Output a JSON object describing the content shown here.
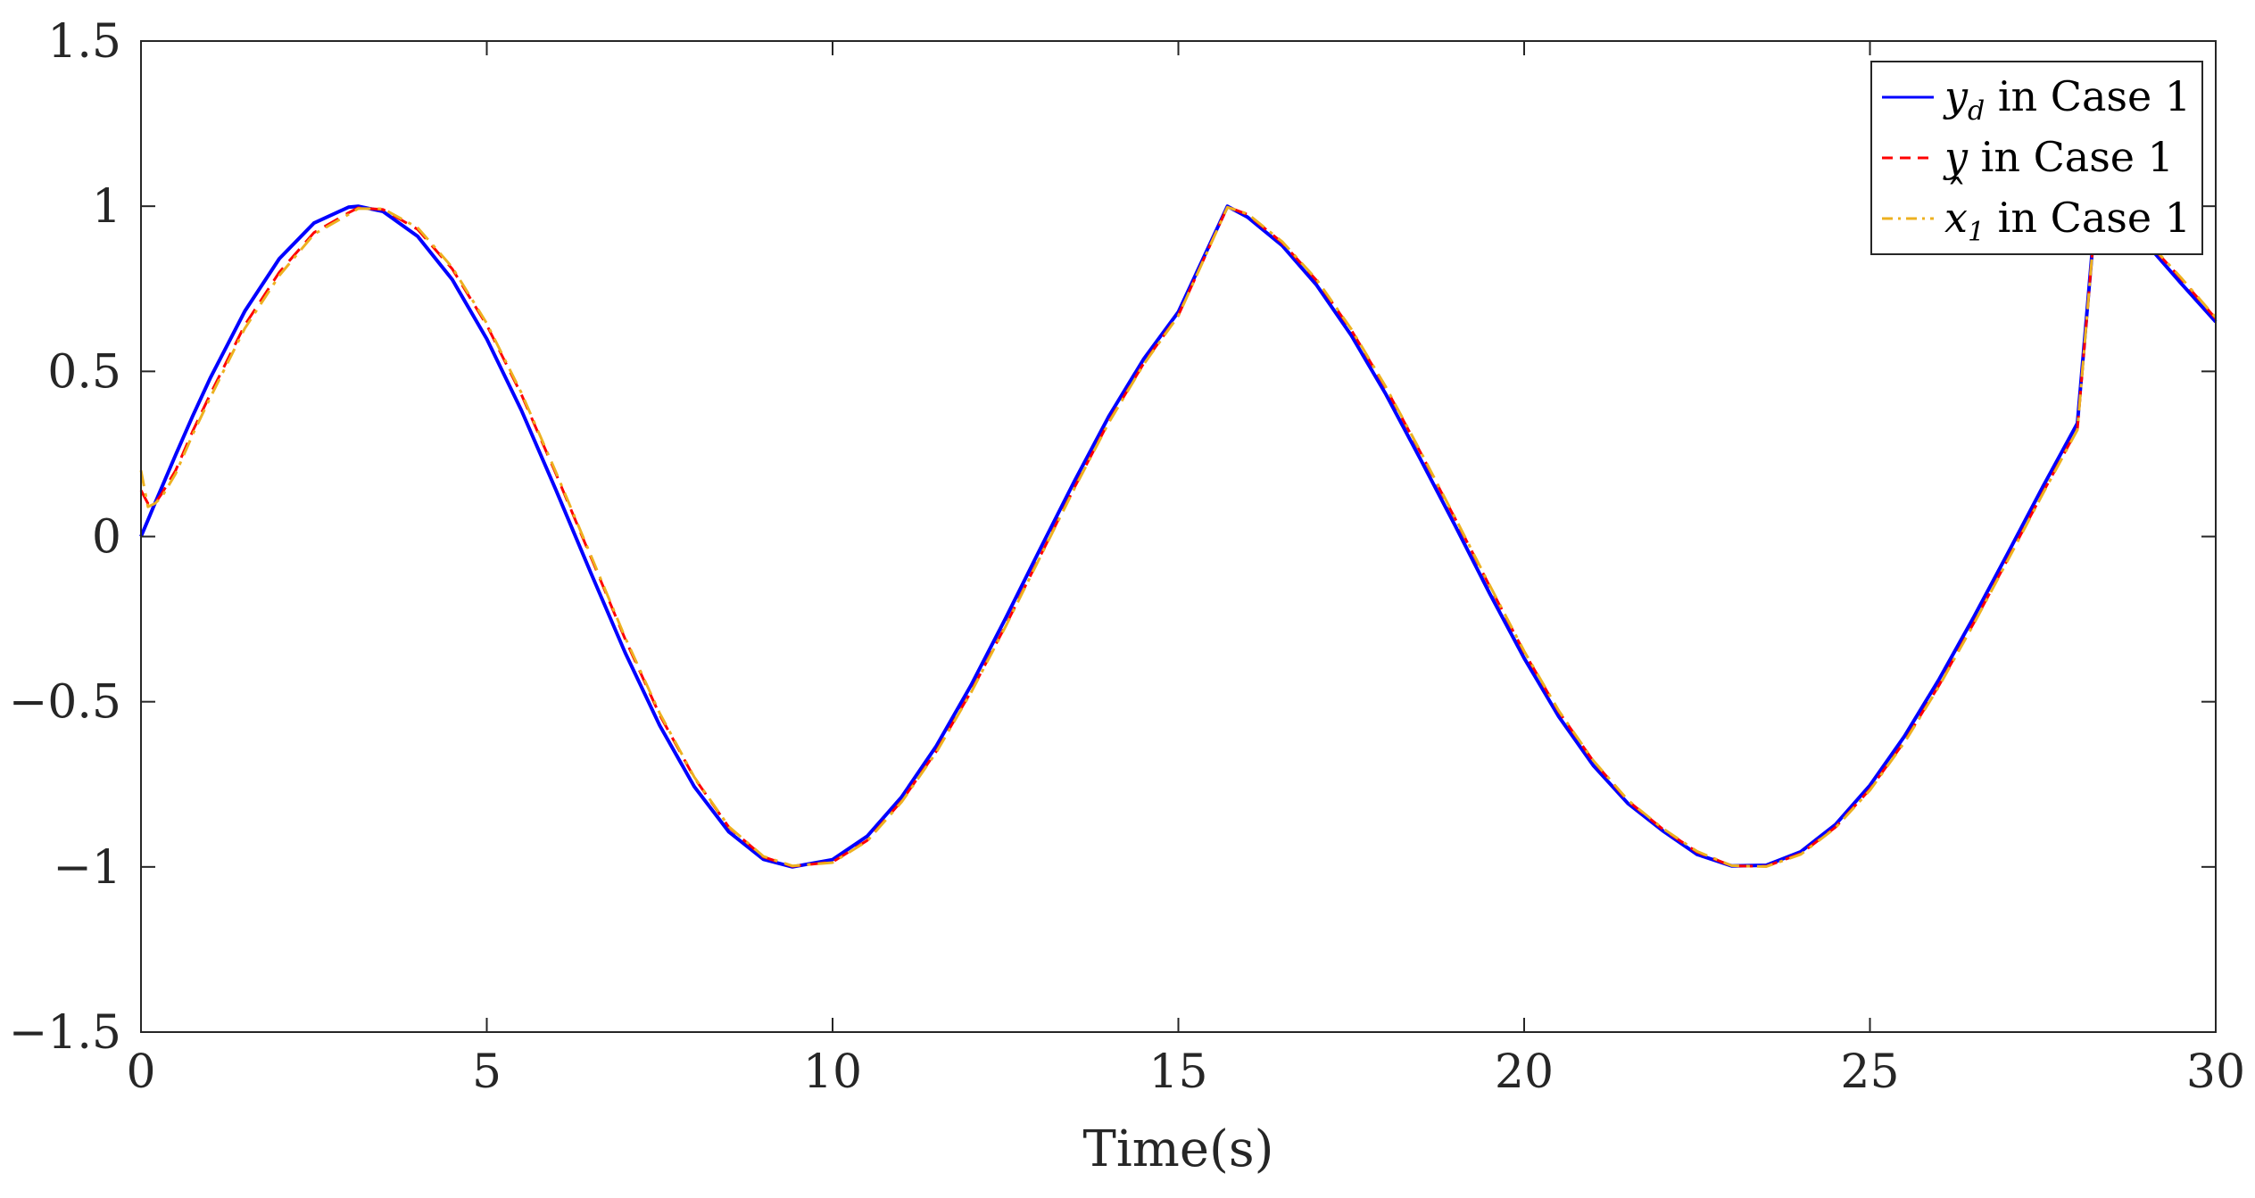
{
  "chart_data": {
    "type": "line",
    "title": "",
    "xlabel": "Time(s)",
    "ylabel": "",
    "xlim": [
      0,
      30
    ],
    "ylim": [
      -1.5,
      1.5
    ],
    "x_ticks": [
      0,
      5,
      10,
      15,
      20,
      25,
      30
    ],
    "y_ticks": [
      -1.5,
      -1,
      -0.5,
      0,
      0.5,
      1,
      1.5
    ],
    "x_tick_labels": [
      "0",
      "5",
      "10",
      "15",
      "20",
      "25",
      "30"
    ],
    "y_tick_labels": [
      "−1.5",
      "−1",
      "−0.5",
      "0",
      "0.5",
      "1",
      "1.5"
    ],
    "grid": false,
    "legend_position": "top-right",
    "x": [
      0,
      0.1,
      0.2,
      0.3,
      0.5,
      0.75,
      1,
      1.5,
      2,
      2.5,
      3,
      3.14,
      3.5,
      4,
      4.5,
      5,
      5.5,
      6,
      6.5,
      7,
      7.5,
      8,
      8.5,
      9,
      9.42,
      10,
      10.5,
      11,
      11.5,
      12,
      12.5,
      13,
      13.5,
      14,
      14.5,
      15,
      15.71,
      16,
      16.5,
      17,
      17.5,
      18,
      18.5,
      19,
      19.5,
      20,
      20.5,
      21,
      21.5,
      22,
      22.5,
      23,
      23.5,
      24,
      24.5,
      25,
      25.5,
      26,
      26.5,
      27,
      27.5,
      28,
      28.27,
      28.5,
      29,
      29.5,
      30
    ],
    "series": [
      {
        "name": "in Case 1",
        "symbol": "y",
        "subscript": "d",
        "hat": false,
        "color": "#0000FF",
        "style": "solid",
        "y": [
          0,
          0.05,
          0.1,
          0.149,
          0.247,
          0.366,
          0.479,
          0.682,
          0.841,
          0.949,
          0.997,
          1,
          0.984,
          0.909,
          0.778,
          0.598,
          0.382,
          0.141,
          -0.108,
          -0.351,
          -0.572,
          -0.757,
          -0.894,
          -0.977,
          -1,
          -0.978,
          -0.907,
          -0.788,
          -0.634,
          -0.451,
          -0.248,
          -0.038,
          0.169,
          0.366,
          0.538,
          0.68,
          0.9999,
          0.967,
          0.881,
          0.761,
          0.609,
          0.431,
          0.234,
          0.034,
          -0.172,
          -0.368,
          -0.545,
          -0.693,
          -0.808,
          -0.89,
          -0.962,
          -0.997,
          -0.995,
          -0.954,
          -0.872,
          -0.753,
          -0.604,
          -0.432,
          -0.244,
          -0.048,
          0.151,
          0.343,
          1,
          0.96,
          0.886,
          0.766,
          0.65
        ]
      },
      {
        "name": "in Case 1",
        "symbol": "y",
        "subscript": "",
        "hat": false,
        "color": "#FF0000",
        "style": "dashed",
        "y": [
          0.14,
          0.1,
          0.1,
          0.13,
          0.2,
          0.32,
          0.43,
          0.64,
          0.8,
          0.92,
          0.98,
          0.995,
          0.99,
          0.93,
          0.81,
          0.64,
          0.43,
          0.19,
          -0.06,
          -0.31,
          -0.54,
          -0.73,
          -0.88,
          -0.97,
          -0.998,
          -0.985,
          -0.92,
          -0.8,
          -0.65,
          -0.47,
          -0.27,
          -0.06,
          0.15,
          0.35,
          0.525,
          0.67,
          0.998,
          0.975,
          0.89,
          0.775,
          0.625,
          0.45,
          0.255,
          0.055,
          -0.15,
          -0.35,
          -0.53,
          -0.68,
          -0.8,
          -0.885,
          -0.955,
          -0.997,
          -0.998,
          -0.96,
          -0.88,
          -0.765,
          -0.62,
          -0.45,
          -0.262,
          -0.066,
          0.133,
          0.326,
          0.995,
          0.965,
          0.895,
          0.78,
          0.66
        ]
      },
      {
        "name": "in Case 1",
        "symbol": "x",
        "subscript": "1",
        "hat": true,
        "color": "#EDB120",
        "style": "dashdot",
        "y": [
          0.2,
          0.09,
          0.1,
          0.12,
          0.19,
          0.31,
          0.42,
          0.63,
          0.79,
          0.915,
          0.975,
          0.993,
          0.992,
          0.935,
          0.815,
          0.645,
          0.435,
          0.195,
          -0.055,
          -0.305,
          -0.535,
          -0.728,
          -0.878,
          -0.968,
          -0.997,
          -0.987,
          -0.922,
          -0.803,
          -0.653,
          -0.473,
          -0.273,
          -0.063,
          0.147,
          0.347,
          0.522,
          0.668,
          0.997,
          0.977,
          0.893,
          0.778,
          0.628,
          0.453,
          0.258,
          0.058,
          -0.147,
          -0.347,
          -0.527,
          -0.678,
          -0.798,
          -0.883,
          -0.953,
          -0.996,
          -0.999,
          -0.962,
          -0.882,
          -0.768,
          -0.623,
          -0.453,
          -0.265,
          -0.069,
          0.13,
          0.323,
          0.994,
          0.966,
          0.897,
          0.783,
          0.663
        ]
      }
    ]
  }
}
